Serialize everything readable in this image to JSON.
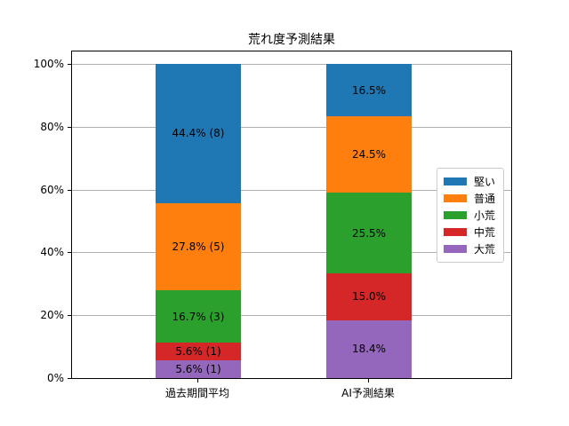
{
  "chart_data": {
    "type": "bar",
    "stacked": true,
    "title": "荒れ度予測結果",
    "categories": [
      "過去期間平均",
      "AI予測結果"
    ],
    "series": [
      {
        "name": "堅い",
        "color": "#1f77b4",
        "values": [
          44.4,
          16.5
        ],
        "bar_labels": [
          "44.4% (8)",
          "16.5%"
        ]
      },
      {
        "name": "普通",
        "color": "#ff7f0e",
        "values": [
          27.8,
          24.5
        ],
        "bar_labels": [
          "27.8% (5)",
          "24.5%"
        ]
      },
      {
        "name": "小荒",
        "color": "#2ca02c",
        "values": [
          16.7,
          25.5
        ],
        "bar_labels": [
          "16.7% (3)",
          "25.5%"
        ]
      },
      {
        "name": "中荒",
        "color": "#d62728",
        "values": [
          5.6,
          15.0
        ],
        "bar_labels": [
          "5.6% (1)",
          "15.0%"
        ]
      },
      {
        "name": "大荒",
        "color": "#9467bd",
        "values": [
          5.6,
          18.4
        ],
        "bar_labels": [
          "5.6% (1)",
          "18.4%"
        ]
      }
    ],
    "y_ticks": [
      {
        "value": 0,
        "label": "0%"
      },
      {
        "value": 20,
        "label": "20%"
      },
      {
        "value": 40,
        "label": "40%"
      },
      {
        "value": 60,
        "label": "60%"
      },
      {
        "value": 80,
        "label": "80%"
      },
      {
        "value": 100,
        "label": "100%"
      }
    ],
    "ylim": [
      0,
      104.5
    ],
    "grid": "horizontal",
    "grid_color": "#b0b0b0",
    "legend_position": "center-right",
    "axes_background": "#ffffff",
    "spine_color": "#000000"
  }
}
